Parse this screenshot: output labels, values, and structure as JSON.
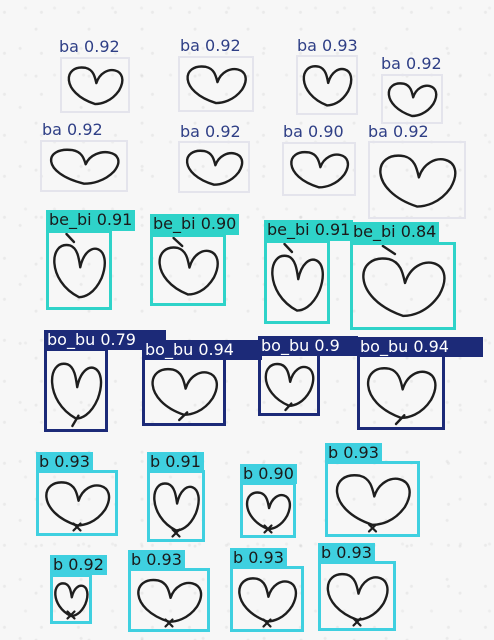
{
  "detections": [
    {
      "label": "ba 0.92",
      "cls": "ba"
    },
    {
      "label": "ba 0.92",
      "cls": "ba"
    },
    {
      "label": "ba 0.93",
      "cls": "ba"
    },
    {
      "label": "ba 0.92",
      "cls": "ba"
    },
    {
      "label": "ba 0.92",
      "cls": "ba"
    },
    {
      "label": "ba 0.92",
      "cls": "ba"
    },
    {
      "label": "ba 0.90",
      "cls": "ba"
    },
    {
      "label": "ba 0.92",
      "cls": "ba"
    },
    {
      "label": "be_bi 0.91",
      "cls": "be_bi"
    },
    {
      "label": "be_bi 0.90",
      "cls": "be_bi"
    },
    {
      "label": "be_bi 0.91",
      "cls": "be_bi"
    },
    {
      "label": "be_bi 0.84",
      "cls": "be_bi"
    },
    {
      "label": "bo_bu 0.79",
      "cls": "bo_bu"
    },
    {
      "label": "bo_bu 0.94",
      "cls": "bo_bu"
    },
    {
      "label": "bo_bu 0.9",
      "cls": "bo_bu"
    },
    {
      "label": "bo_bu 0.94",
      "cls": "bo_bu"
    },
    {
      "label": "b 0.93",
      "cls": "b"
    },
    {
      "label": "b 0.91",
      "cls": "b"
    },
    {
      "label": "b 0.90",
      "cls": "b"
    },
    {
      "label": "b 0.93",
      "cls": "b"
    },
    {
      "label": "b 0.92",
      "cls": "b"
    },
    {
      "label": "b 0.93",
      "cls": "b"
    },
    {
      "label": "b 0.93",
      "cls": "b"
    },
    {
      "label": "b 0.93",
      "cls": "b"
    }
  ],
  "class_styles": {
    "ba": {
      "box_color": "#e4e4ec",
      "label_bg": "transparent",
      "text_color": "#2f3f86"
    },
    "be_bi": {
      "box_color": "#2fd3c9",
      "label_bg": "#2fd3c9",
      "text_color": "#1a1a1a"
    },
    "bo_bu": {
      "box_color": "#1c2a78",
      "label_bg": "#1c2a78",
      "text_color": "#ffffff"
    },
    "b": {
      "box_color": "#3fd0e0",
      "label_bg": "#3fd0e0",
      "text_color": "#1a1a1a"
    }
  }
}
